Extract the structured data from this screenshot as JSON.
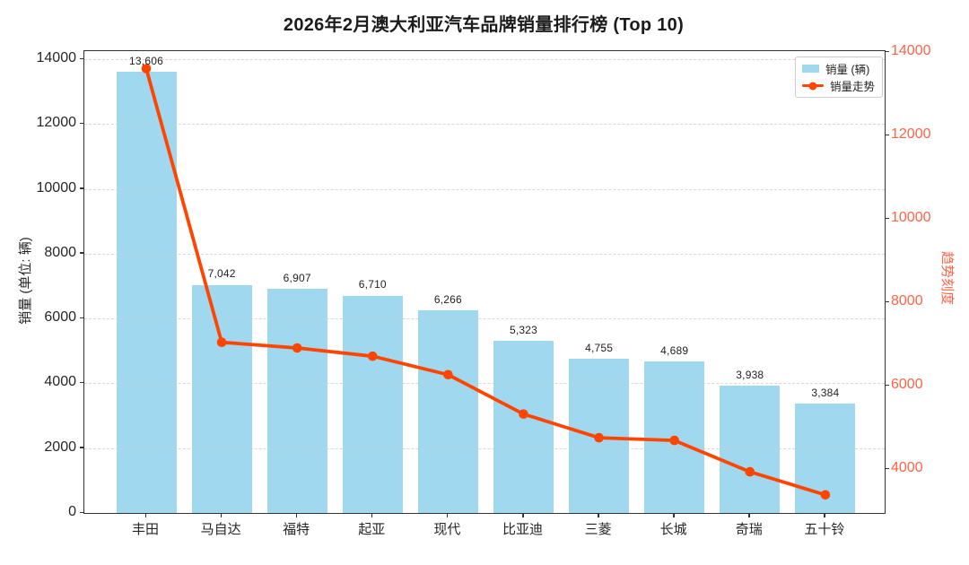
{
  "chart_data": {
    "type": "bar+line",
    "title": "2026年2月澳大利亚汽车品牌销量排行榜 (Top 10)",
    "categories": [
      "丰田",
      "马自达",
      "福特",
      "起亚",
      "现代",
      "比亚迪",
      "三菱",
      "长城",
      "奇瑞",
      "五十铃"
    ],
    "series": [
      {
        "name": "销量 (辆)",
        "type": "bar",
        "axis": "left",
        "color": "#9fd8ef",
        "values": [
          13606,
          7042,
          6907,
          6710,
          6266,
          5323,
          4755,
          4689,
          3938,
          3384
        ],
        "labels": [
          "13,606",
          "7,042",
          "6,907",
          "6,710",
          "6,266",
          "5,323",
          "4,755",
          "4,689",
          "3,938",
          "3,384"
        ]
      },
      {
        "name": "销量走势",
        "type": "line",
        "axis": "right",
        "color": "#ff4500",
        "marker": "circle",
        "values": [
          13606,
          7042,
          6907,
          6710,
          6266,
          5323,
          4755,
          4689,
          3938,
          3384
        ]
      }
    ],
    "left_axis": {
      "label": "销量 (单位: 辆)",
      "ticks": [
        0,
        2000,
        4000,
        6000,
        8000,
        10000,
        12000,
        14000
      ],
      "range": [
        0,
        14250
      ],
      "color": "#262626"
    },
    "right_axis": {
      "label": "趋势刻度",
      "ticks": [
        4000,
        6000,
        8000,
        10000,
        12000,
        14000
      ],
      "range": [
        2950,
        14025
      ],
      "color": "#ff6347"
    },
    "legend": {
      "position": "upper right",
      "items": [
        {
          "label": "销量 (辆)",
          "swatch": "bar",
          "color": "#9fd8ef"
        },
        {
          "label": "销量走势",
          "swatch": "line",
          "color": "#ff4500"
        }
      ]
    },
    "grid": {
      "axis": "y",
      "style": "dashed",
      "color": "#cfcfcf"
    }
  }
}
